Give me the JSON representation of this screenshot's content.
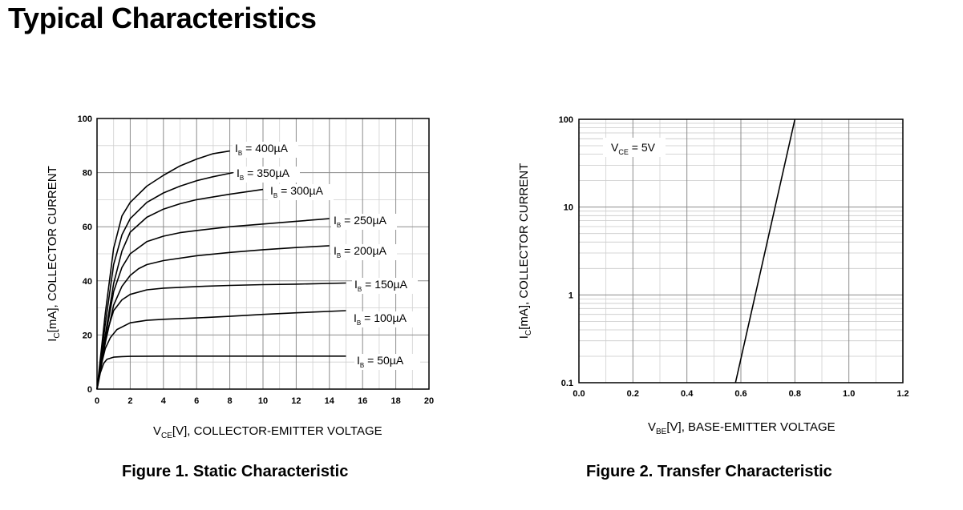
{
  "page": {
    "title": "Typical Characteristics"
  },
  "figures": [
    {
      "caption": "Figure 1. Static Characteristic"
    },
    {
      "caption": "Figure 2. Transfer Characteristic"
    }
  ],
  "chart_data": [
    {
      "type": "line",
      "xlabel": {
        "main": "V",
        "sub": "CE",
        "rest": "[V], COLLECTOR-EMITTER VOLTAGE"
      },
      "ylabel": {
        "main": "I",
        "sub": "C",
        "rest": "[mA], COLLECTOR CURRENT"
      },
      "xlim": [
        0,
        20
      ],
      "ylim": [
        0,
        100
      ],
      "xticks": [
        0,
        2,
        4,
        6,
        8,
        10,
        12,
        14,
        16,
        18,
        20
      ],
      "yticks": [
        0,
        20,
        40,
        60,
        80,
        100
      ],
      "grid": true,
      "series": [
        {
          "name": "I_B = 50µA",
          "label": {
            "main": "I",
            "sub": "B",
            "rest": " = 50µA"
          },
          "x": [
            0,
            0.2,
            0.4,
            0.6,
            1,
            1.5,
            2,
            4,
            8,
            15
          ],
          "y": [
            0,
            6,
            9.5,
            11,
            11.8,
            12,
            12.1,
            12.2,
            12.2,
            12.2
          ]
        },
        {
          "name": "I_B = 100µA",
          "label": {
            "main": "I",
            "sub": "B",
            "rest": " = 100µA"
          },
          "x": [
            0,
            0.3,
            0.5,
            0.8,
            1.2,
            2,
            3,
            4,
            6,
            8,
            10,
            12,
            15
          ],
          "y": [
            0,
            10,
            15,
            19,
            22,
            24.5,
            25.4,
            25.8,
            26.3,
            26.9,
            27.6,
            28.2,
            29
          ]
        },
        {
          "name": "I_B = 150µA",
          "label": {
            "main": "I",
            "sub": "B",
            "rest": " = 150µA"
          },
          "x": [
            0,
            0.4,
            0.7,
            1,
            1.5,
            2,
            3,
            4,
            6,
            8,
            10,
            12,
            15
          ],
          "y": [
            0,
            15,
            23,
            29,
            33,
            35,
            36.7,
            37.3,
            37.9,
            38.3,
            38.6,
            38.8,
            39.2
          ]
        },
        {
          "name": "I_B = 200µA",
          "label": {
            "main": "I",
            "sub": "B",
            "rest": " = 200µA"
          },
          "x": [
            0,
            0.5,
            1,
            1.5,
            2,
            2.5,
            3,
            4,
            6,
            8,
            10,
            12,
            14
          ],
          "y": [
            0,
            17,
            31,
            38,
            42,
            44.5,
            46,
            47.5,
            49.3,
            50.5,
            51.5,
            52.3,
            53
          ]
        },
        {
          "name": "I_B = 250µA",
          "label": {
            "main": "I",
            "sub": "B",
            "rest": " = 250µA"
          },
          "x": [
            0,
            0.5,
            1,
            1.5,
            2,
            3,
            4,
            5,
            6,
            8,
            10,
            12,
            14
          ],
          "y": [
            0,
            19,
            36,
            45,
            50,
            54.5,
            56.5,
            57.8,
            58.6,
            60,
            61,
            62,
            63
          ]
        },
        {
          "name": "I_B = 300µA",
          "label": {
            "main": "I",
            "sub": "B",
            "rest": " = 300µA"
          },
          "x": [
            0,
            0.5,
            1,
            1.5,
            2,
            3,
            4,
            5,
            6,
            8,
            10
          ],
          "y": [
            0,
            20,
            39,
            51,
            58,
            63.5,
            66.5,
            68.5,
            70,
            72,
            73.8
          ]
        },
        {
          "name": "I_B = 350µA",
          "label": {
            "main": "I",
            "sub": "B",
            "rest": " = 350µA"
          },
          "x": [
            0,
            0.5,
            1,
            1.5,
            2,
            3,
            4,
            5,
            6,
            7,
            8.2
          ],
          "y": [
            0,
            24,
            46,
            57,
            63,
            69,
            72.5,
            75,
            77,
            78.5,
            80
          ]
        },
        {
          "name": "I_B = 400µA",
          "label": {
            "main": "I",
            "sub": "B",
            "rest": " = 400µA"
          },
          "x": [
            0,
            0.5,
            1,
            1.5,
            2,
            3,
            4,
            5,
            6,
            7,
            8
          ],
          "y": [
            0,
            28,
            52,
            64,
            69,
            75,
            79,
            82.5,
            85,
            87,
            88
          ]
        }
      ]
    },
    {
      "type": "line",
      "xlabel": {
        "main": "V",
        "sub": "BE",
        "rest": "[V], BASE-EMITTER VOLTAGE"
      },
      "ylabel": {
        "main": "I",
        "sub": "C",
        "rest": "[mA], COLLECTOR CURRENT"
      },
      "xlim": [
        0,
        1.2
      ],
      "ylim": [
        0.1,
        100
      ],
      "yscale": "log",
      "xticks": [
        "0.0",
        "0.2",
        "0.4",
        "0.6",
        "0.8",
        "1.0",
        "1.2"
      ],
      "yticks": [
        "0.1",
        "1",
        "10",
        "100"
      ],
      "grid": true,
      "annotation": {
        "main": "V",
        "sub": "CE",
        "rest": " = 5V"
      },
      "series": [
        {
          "x": [
            0.58,
            0.8
          ],
          "y": [
            0.1,
            100
          ]
        }
      ]
    }
  ]
}
